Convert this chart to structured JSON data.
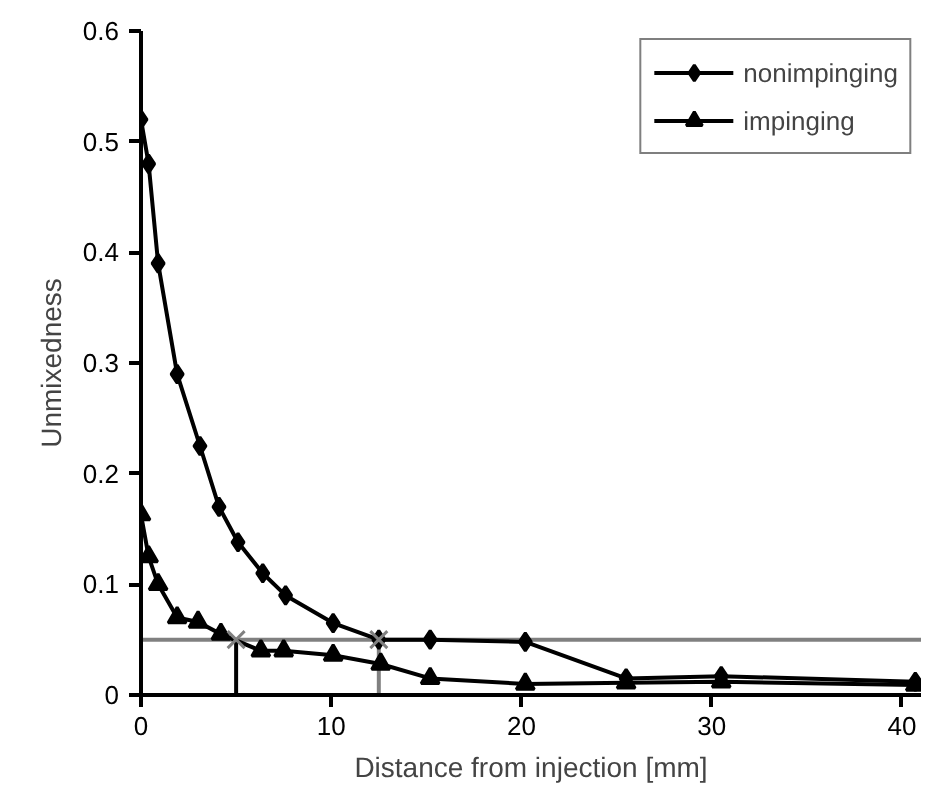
{
  "chart_data": {
    "type": "line",
    "xlabel": "Distance from injection [mm]",
    "ylabel": "Unmixedness",
    "xlim": [
      0,
      41
    ],
    "ylim": [
      0,
      0.6
    ],
    "xticks": [
      0,
      10,
      20,
      30,
      40
    ],
    "yticks": [
      0,
      0.1,
      0.2,
      0.3,
      0.4,
      0.5,
      0.6
    ],
    "grid": false,
    "legend": "top right",
    "line_style": "solid",
    "series": [
      {
        "name": "nonimpinging",
        "color": "#000000",
        "marker": "diamond",
        "x": [
          0,
          0.4,
          0.9,
          1.9,
          3.1,
          4.1,
          5.1,
          6.4,
          7.6,
          10.1,
          12.5,
          15.2,
          20.2,
          25.5,
          30.5,
          40.7
        ],
        "values": [
          0.52,
          0.48,
          0.39,
          0.29,
          0.225,
          0.17,
          0.138,
          0.11,
          0.09,
          0.065,
          0.05,
          0.05,
          0.048,
          0.015,
          0.017,
          0.012
        ]
      },
      {
        "name": "impinging",
        "color": "#000000",
        "marker": "triangle",
        "x": [
          0,
          0.4,
          0.9,
          1.9,
          3.0,
          4.2,
          6.3,
          7.5,
          10.1,
          12.6,
          15.2,
          20.2,
          25.5,
          30.5,
          40.7
        ],
        "values": [
          0.163,
          0.125,
          0.1,
          0.07,
          0.066,
          0.055,
          0.04,
          0.04,
          0.036,
          0.028,
          0.015,
          0.01,
          0.011,
          0.012,
          0.009
        ]
      },
      {
        "type": "scatter",
        "color": "#808080",
        "marker": "cross",
        "x": [
          5,
          12.5
        ],
        "values": [
          0.05,
          0.05
        ]
      }
    ],
    "ref_lines": [
      {
        "axis": "y",
        "value": 0.05,
        "color": "#808080"
      },
      {
        "axis": "x",
        "value": 5,
        "color": "#000000"
      },
      {
        "axis": "x",
        "value": 12.5,
        "color": "#808080"
      }
    ]
  }
}
